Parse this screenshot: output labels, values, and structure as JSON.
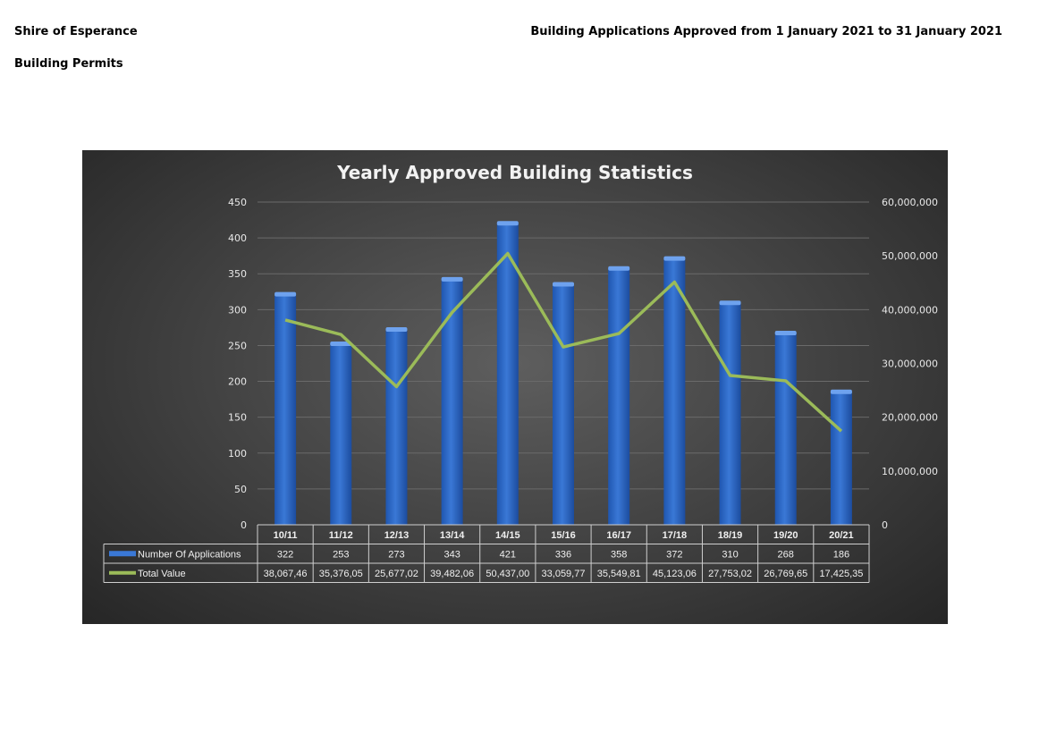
{
  "header": {
    "organization": "Shire of Esperance",
    "section": "Building Permits",
    "report_title": "Building Applications Approved from 1 January 2021 to 31 January 2021"
  },
  "colors": {
    "bar": "#3a78d6",
    "line": "#9bbb59",
    "background": "#444444"
  },
  "chart_data": {
    "type": "bar",
    "title": "Yearly Approved Building Statistics",
    "categories": [
      "10/11",
      "11/12",
      "12/13",
      "13/14",
      "14/15",
      "15/16",
      "16/17",
      "17/18",
      "18/19",
      "19/20",
      "20/21"
    ],
    "series": [
      {
        "name": "Number Of Applications",
        "type": "bar",
        "axis": "left",
        "values": [
          322,
          253,
          273,
          343,
          421,
          336,
          358,
          372,
          310,
          268,
          186
        ]
      },
      {
        "name": "Total Value",
        "type": "line",
        "axis": "right",
        "values": [
          38067460,
          35376050,
          25677020,
          39482060,
          50437000,
          33059770,
          35549810,
          45123060,
          27753020,
          26769650,
          17425350
        ]
      }
    ],
    "table_rows": [
      {
        "label": "Number Of Applications",
        "cells": [
          "322",
          "253",
          "273",
          "343",
          "421",
          "336",
          "358",
          "372",
          "310",
          "268",
          "186"
        ]
      },
      {
        "label": "Total Value",
        "cells": [
          "38,067,46",
          "35,376,05",
          "25,677,02",
          "39,482,06",
          "50,437,00",
          "33,059,77",
          "35,549,81",
          "45,123,06",
          "27,753,02",
          "26,769,65",
          "17,425,35"
        ]
      }
    ],
    "y_left": {
      "ylim": [
        0,
        450
      ],
      "ticks": [
        0,
        50,
        100,
        150,
        200,
        250,
        300,
        350,
        400,
        450
      ],
      "tick_labels": [
        "0",
        "50",
        "100",
        "150",
        "200",
        "250",
        "300",
        "350",
        "400",
        "450"
      ]
    },
    "y_right": {
      "ylim": [
        0,
        60000000
      ],
      "ticks": [
        0,
        10000000,
        20000000,
        30000000,
        40000000,
        50000000,
        60000000
      ],
      "tick_labels": [
        "0",
        "10,000,000",
        "20,000,000",
        "30,000,000",
        "40,000,000",
        "50,000,000",
        "60,000,000"
      ]
    },
    "grid": true,
    "legend": "data-table"
  }
}
